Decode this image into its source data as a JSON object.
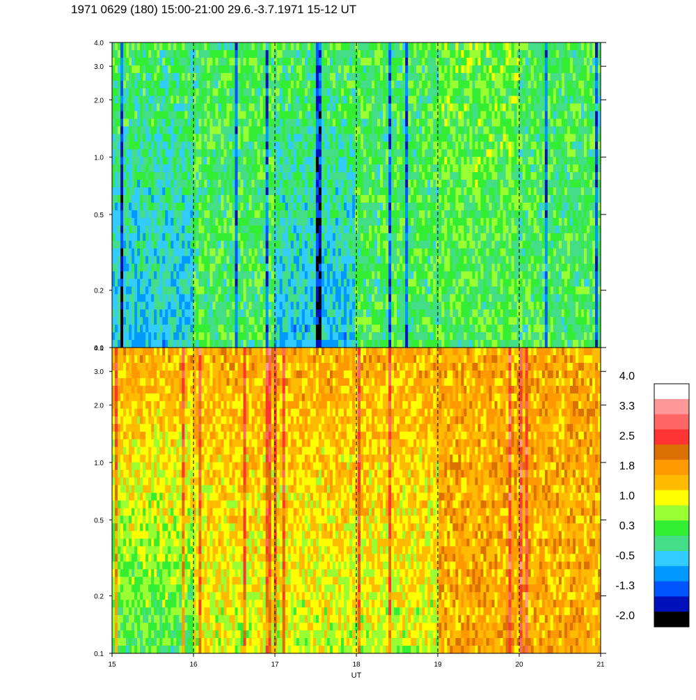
{
  "title": "1971 0629 (180) 15:00-21:00 29.6.-3.7.1971  15-12 UT",
  "chart_data": {
    "type": "heatmap",
    "panels": [
      {
        "name": "",
        "ylabel": "",
        "yscale": "log",
        "ylim": [
          0.1,
          4.0
        ],
        "ytick_labels": [
          "0.1",
          "0.2",
          "0.5",
          "1.0",
          "2.0",
          "3.0",
          "4.0"
        ],
        "yticks": [
          0.1,
          0.2,
          0.5,
          1.0,
          2.0,
          3.0,
          4.0
        ],
        "dominant_level_by_hour": [
          {
            "hour": 15,
            "low_freq": -0.5,
            "high_freq": 0.3
          },
          {
            "hour": 16,
            "low_freq": 0.3,
            "high_freq": 0.3
          },
          {
            "hour": 17,
            "low_freq": -0.5,
            "high_freq": 0.3
          },
          {
            "hour": 18,
            "low_freq": 0.3,
            "high_freq": 0.3
          },
          {
            "hour": 19,
            "low_freq": 0.3,
            "high_freq": 0.6
          },
          {
            "hour": 20,
            "low_freq": 0.3,
            "high_freq": 0.3
          }
        ]
      },
      {
        "name": "",
        "ylabel": "",
        "yscale": "log",
        "ylim": [
          0.1,
          4.0
        ],
        "ytick_labels": [
          "0.1",
          "0.2",
          "0.5",
          "1.0",
          "2.0",
          "3.0",
          "4.0"
        ],
        "yticks": [
          0.1,
          0.2,
          0.5,
          1.0,
          2.0,
          3.0,
          4.0
        ],
        "dominant_level_by_hour": [
          {
            "hour": 15,
            "low_freq": 0.3,
            "high_freq": 1.8
          },
          {
            "hour": 16,
            "low_freq": 1.0,
            "high_freq": 1.8
          },
          {
            "hour": 17,
            "low_freq": 1.0,
            "high_freq": 1.8
          },
          {
            "hour": 18,
            "low_freq": 1.0,
            "high_freq": 1.8
          },
          {
            "hour": 19,
            "low_freq": 1.8,
            "high_freq": 1.8
          },
          {
            "hour": 20,
            "low_freq": 1.8,
            "high_freq": 1.8
          }
        ]
      }
    ],
    "x": {
      "label": "UT",
      "range": [
        15,
        21
      ],
      "ticks": [
        15,
        16,
        17,
        18,
        19,
        20,
        21
      ],
      "tick_labels": [
        "15",
        "16",
        "17",
        "18",
        "19",
        "20",
        "21"
      ],
      "dashed_hour_lines": [
        16,
        17,
        18,
        19,
        20
      ]
    },
    "colorbar": {
      "labels": [
        "4.0",
        "3.3",
        "2.5",
        "1.8",
        "1.0",
        "0.3",
        "-0.5",
        "-1.3",
        "-2.0"
      ],
      "colors": [
        "#ffffff",
        "#ff9999",
        "#ff6666",
        "#ff3333",
        "#d97000",
        "#ff9900",
        "#ffbb00",
        "#ffff00",
        "#99ff33",
        "#33ee33",
        "#44dd88",
        "#33ccff",
        "#0099ff",
        "#0055ff",
        "#0011bb",
        "#000000"
      ],
      "range": [
        -2.0,
        4.0
      ]
    },
    "grid": false
  }
}
